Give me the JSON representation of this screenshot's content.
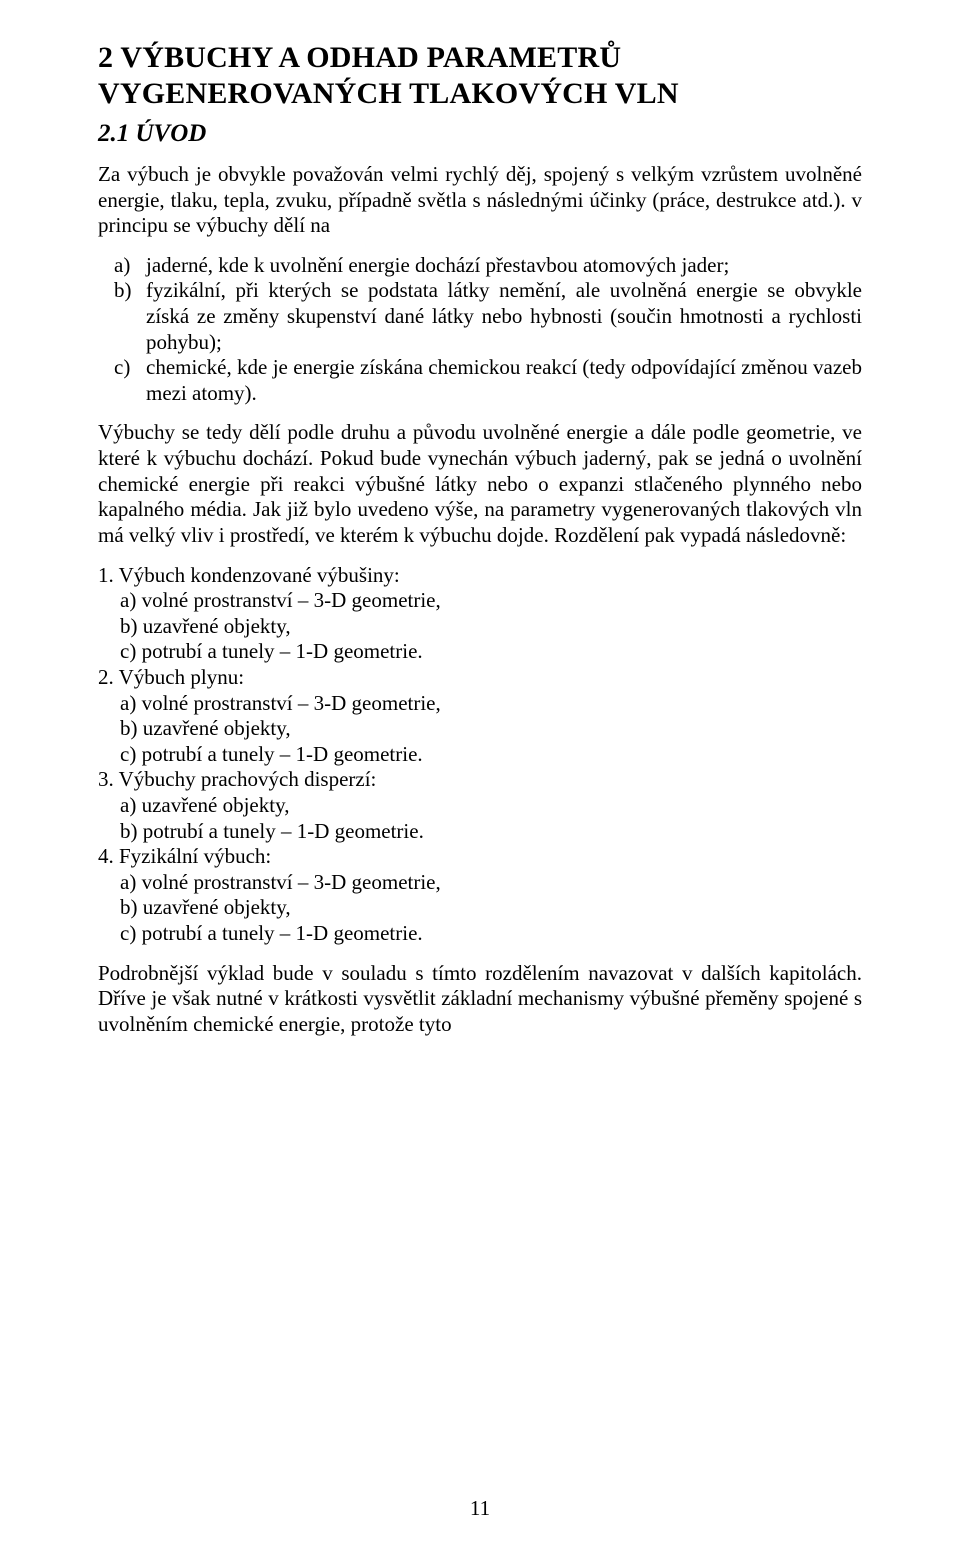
{
  "colors": {
    "background": "#ffffff",
    "text": "#000000"
  },
  "typography": {
    "font_family": "Times New Roman",
    "body_fontsize_pt": 16,
    "h1_fontsize_pt": 22,
    "h2_fontsize_pt": 19
  },
  "heading": {
    "title_line1": "2  VÝBUCHY A ODHAD PARAMETRŮ",
    "title_line2": "VYGENEROVANÝCH TLAKOVÝCH VLN",
    "subheading": "2.1  ÚVOD"
  },
  "para1": "Za výbuch je obvykle považován velmi rychlý děj, spojený s velkým vzrůstem uvolněné energie, tlaku, tepla, zvuku, případně světla s následnými účinky (práce, destrukce atd.). v principu se výbuchy dělí na",
  "list_abc": {
    "a": {
      "marker": "a)",
      "text": "jaderné, kde k uvolnění energie dochází přestavbou atomových jader;"
    },
    "b": {
      "marker": "b)",
      "text": "fyzikální, při kterých se podstata látky nemění, ale uvolněná energie se obvykle získá ze změny skupenství dané látky nebo hybnosti (součin hmotnosti a rychlosti pohybu);"
    },
    "c": {
      "marker": "c)",
      "text": "chemické, kde je energie získána chemickou reakcí (tedy odpovídající změnou vazeb mezi atomy)."
    }
  },
  "para2": "Výbuchy se tedy dělí podle druhu a původu uvolněné energie a dále podle geometrie, ve které k výbuchu dochází. Pokud bude vynechán výbuch jaderný, pak se jedná o uvolnění chemické energie při reakci výbušné látky nebo o expanzi stlačeného plynného nebo kapalného média. Jak již bylo uvedeno výše, na parametry vygenerovaných tlakových vln má velký vliv i prostředí, ve kterém k výbuchu dojde. Rozdělení pak vypadá následovně:",
  "outline": {
    "g1": {
      "head": "1. Výbuch kondenzované výbušiny:",
      "a": "a)   volné prostranství – 3-D geometrie,",
      "b": "b)   uzavřené objekty,",
      "c": "c)   potrubí a tunely – 1-D geometrie."
    },
    "g2": {
      "head": "2. Výbuch plynu:",
      "a": "a)   volné prostranství – 3-D geometrie,",
      "b": "b)   uzavřené objekty,",
      "c": "c)   potrubí a tunely – 1-D geometrie."
    },
    "g3": {
      "head": "3. Výbuchy prachových disperzí:",
      "a": "a)   uzavřené objekty,",
      "b": "b)   potrubí a tunely – 1-D geometrie."
    },
    "g4": {
      "head": "4. Fyzikální výbuch:",
      "a": "a)   volné prostranství – 3-D geometrie,",
      "b": "b)   uzavřené objekty,",
      "c": "c)   potrubí a tunely – 1-D geometrie."
    }
  },
  "para3": "Podrobnější výklad bude v souladu s tímto rozdělením navazovat v dalších kapitolách. Dříve je však nutné v krátkosti vysvětlit základní mechanismy výbušné přeměny spojené s uvolněním chemické energie, protože tyto",
  "page_number": "11"
}
